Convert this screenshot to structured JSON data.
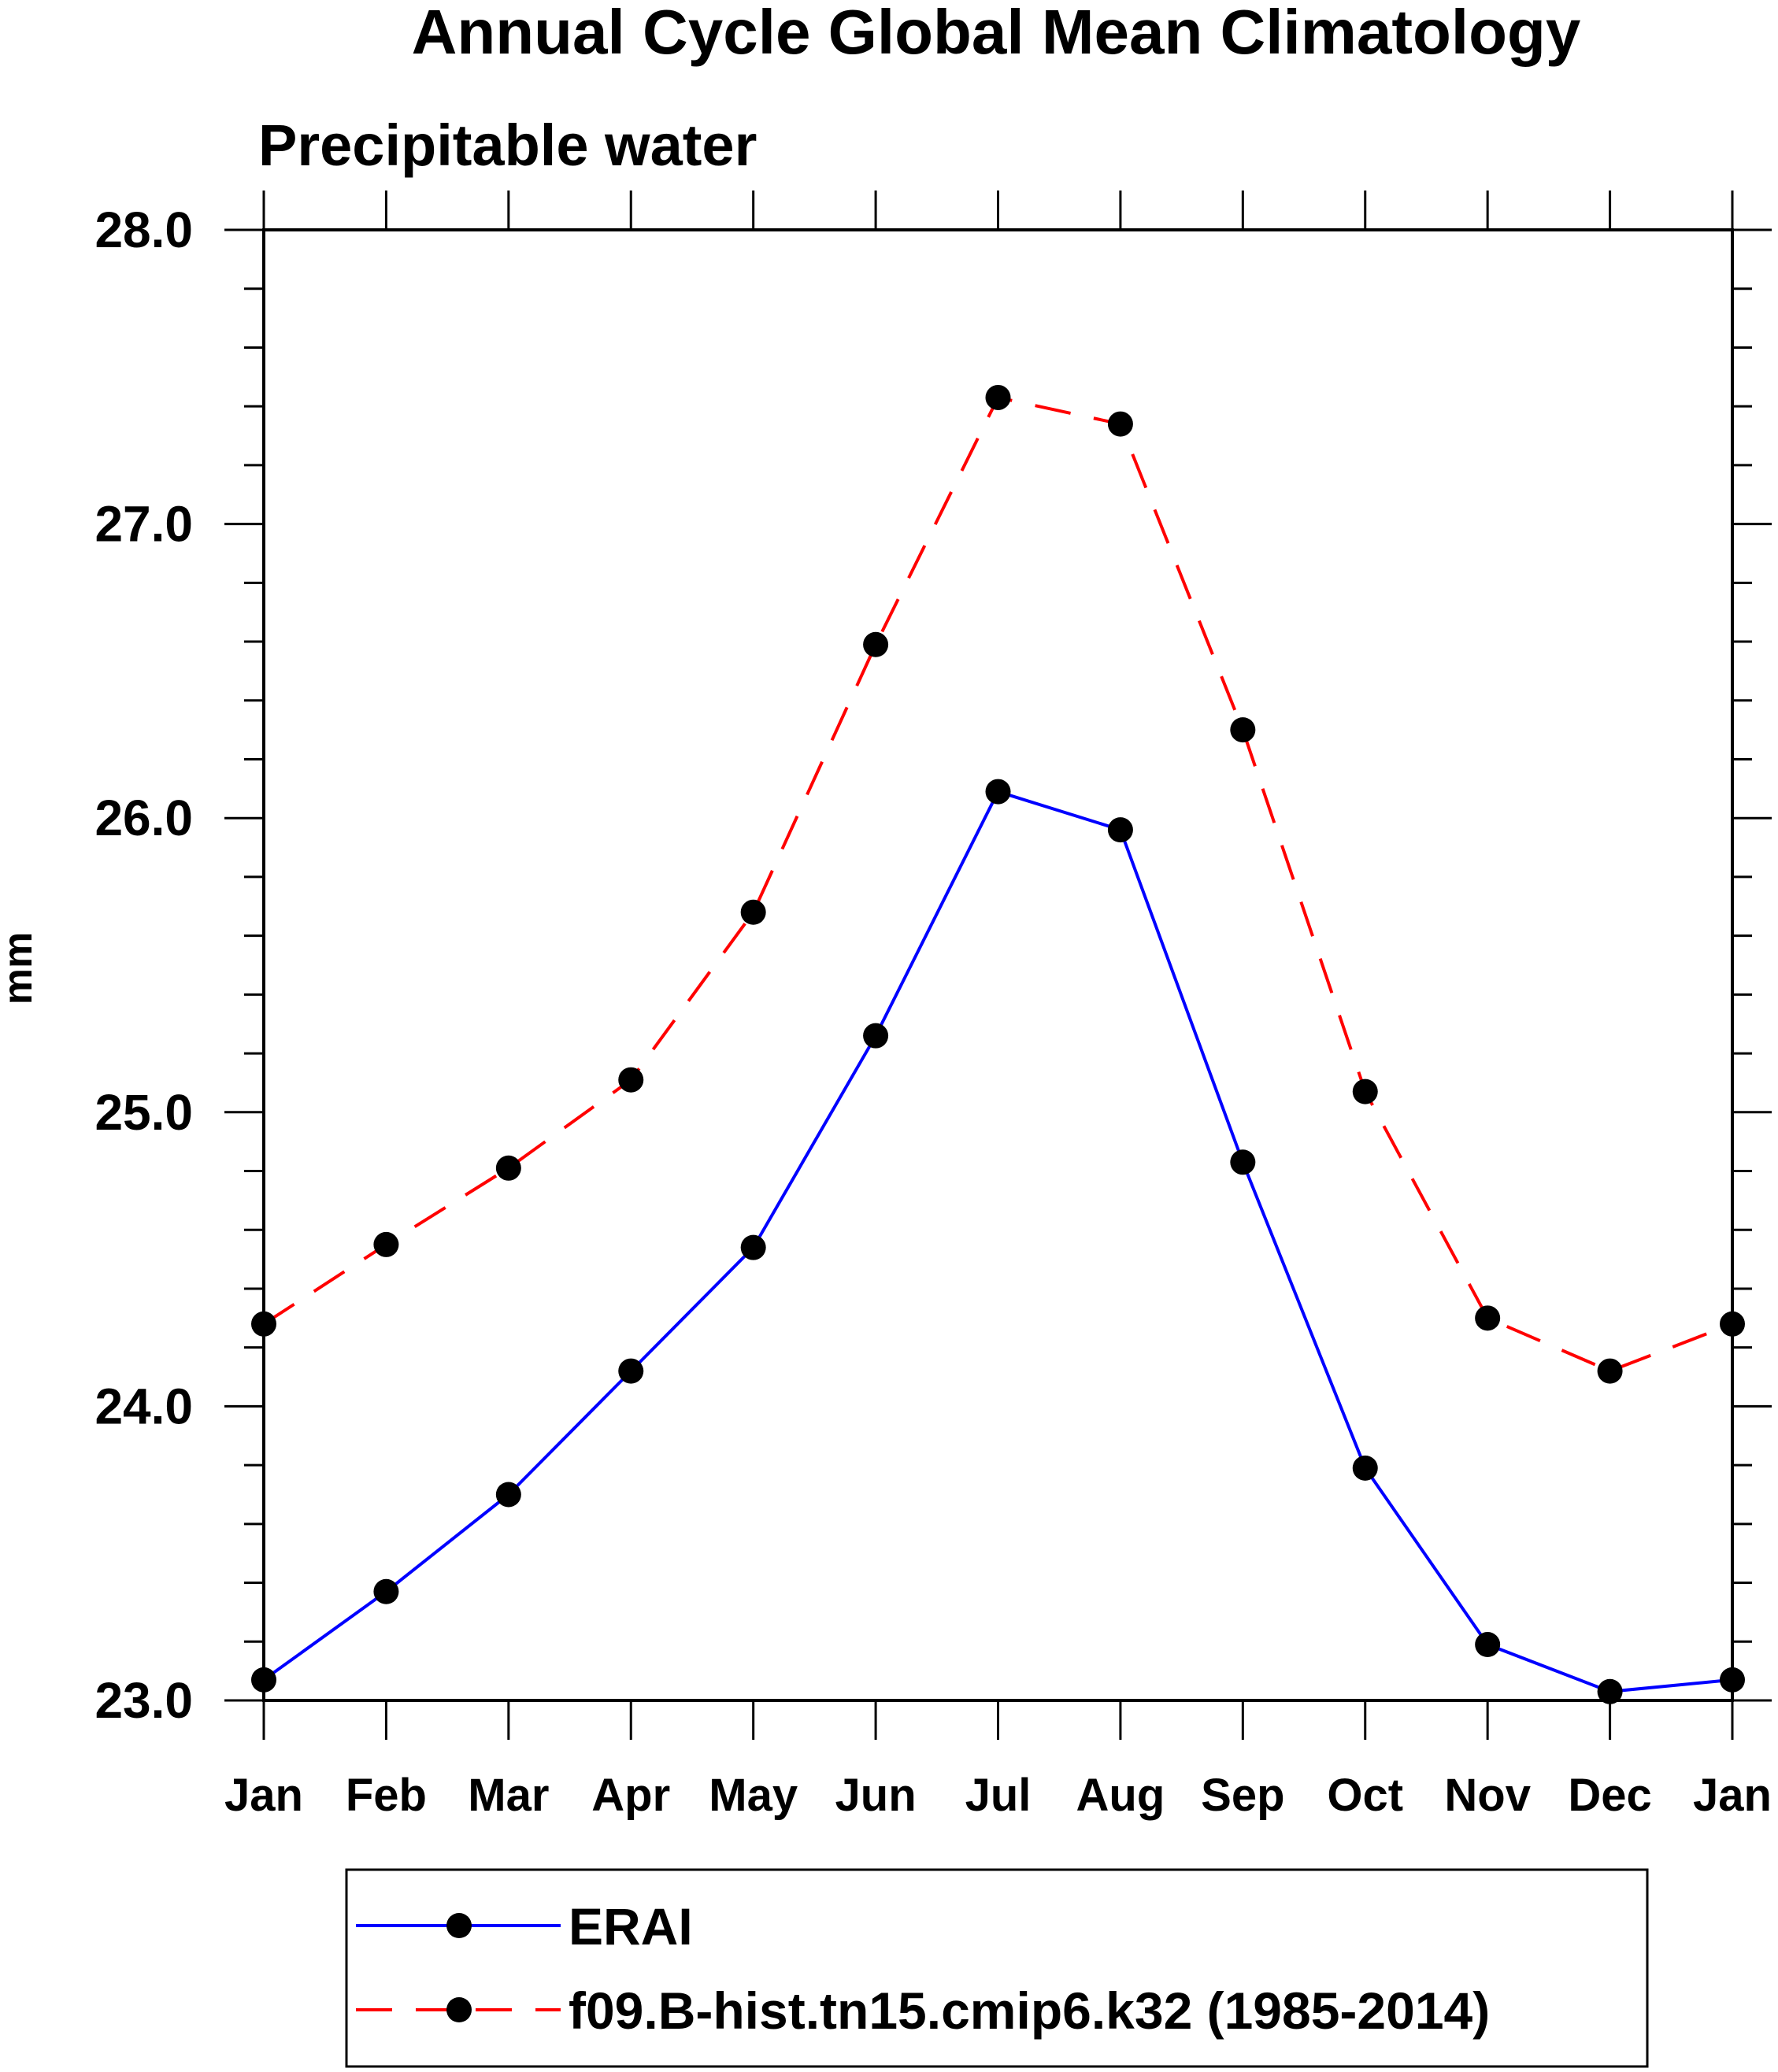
{
  "chart_data": {
    "type": "line",
    "title": "Annual Cycle Global Mean Climatology",
    "subtitle": "Precipitable water",
    "xlabel": "",
    "ylabel": "mm",
    "categories": [
      "Jan",
      "Feb",
      "Mar",
      "Apr",
      "May",
      "Jun",
      "Jul",
      "Aug",
      "Sep",
      "Oct",
      "Nov",
      "Dec",
      "Jan"
    ],
    "ylim": [
      23.0,
      28.0
    ],
    "yticks": [
      "23.0",
      "24.0",
      "25.0",
      "26.0",
      "27.0",
      "28.0"
    ],
    "grid": false,
    "legend_position": "bottom",
    "series": [
      {
        "name": "ERAI",
        "color": "#0000ff",
        "line_style": "solid",
        "marker": "filled-circle",
        "values": [
          23.07,
          23.37,
          23.7,
          24.12,
          24.54,
          25.26,
          26.09,
          25.96,
          24.83,
          23.79,
          23.19,
          23.03,
          23.07
        ]
      },
      {
        "name": "f09.B-hist.tn15.cmip6.k32 (1985-2014)",
        "color": "#ff0000",
        "line_style": "dashed",
        "marker": "filled-circle",
        "values": [
          24.28,
          24.55,
          24.81,
          25.11,
          25.68,
          26.59,
          27.43,
          27.34,
          26.3,
          25.07,
          24.3,
          24.12,
          24.28
        ]
      }
    ]
  }
}
